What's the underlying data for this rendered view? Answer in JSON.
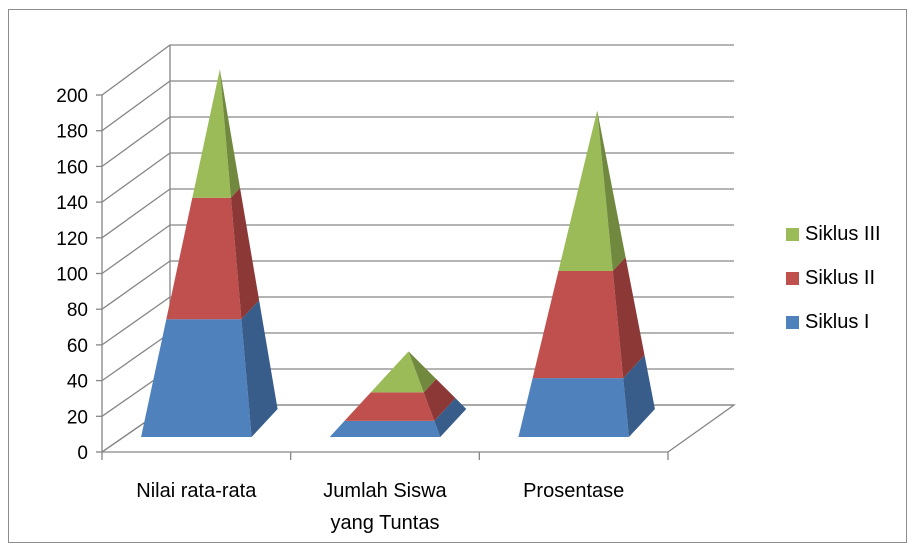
{
  "chart_data": {
    "type": "bar",
    "subtype": "3d-pyramid-stacked",
    "categories": [
      {
        "line1": "Nilai rata-rata",
        "line2": ""
      },
      {
        "line1": "Jumlah Siswa",
        "line2": "yang Tuntas"
      },
      {
        "line1": "Prosentase",
        "line2": ""
      }
    ],
    "series": [
      {
        "name": "Siklus I",
        "color": "#4f81bd",
        "side": "#385d8a",
        "values": [
          66,
          9,
          33
        ]
      },
      {
        "name": "Siklus II",
        "color": "#c0504d",
        "side": "#8c3836",
        "values": [
          68,
          16,
          60
        ]
      },
      {
        "name": "Siklus III",
        "color": "#9bbb59",
        "side": "#71893f",
        "values": [
          72,
          23,
          90
        ]
      }
    ],
    "yticks": [
      "0",
      "20",
      "40",
      "60",
      "80",
      "100",
      "120",
      "140",
      "160",
      "180",
      "200"
    ],
    "ylim": [
      0,
      200
    ],
    "grid": true,
    "legend_position": "right"
  }
}
